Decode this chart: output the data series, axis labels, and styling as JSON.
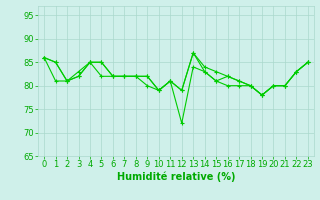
{
  "series": [
    [
      86,
      85,
      81,
      82,
      85,
      85,
      82,
      82,
      82,
      82,
      79,
      81,
      79,
      87,
      84,
      83,
      82,
      81,
      80,
      78,
      80,
      80,
      83,
      85
    ],
    [
      86,
      81,
      81,
      83,
      85,
      82,
      82,
      82,
      82,
      80,
      79,
      81,
      72,
      84,
      83,
      81,
      82,
      81,
      80,
      78,
      80,
      80,
      83,
      85
    ],
    [
      86,
      85,
      81,
      82,
      85,
      85,
      82,
      82,
      82,
      82,
      79,
      81,
      79,
      87,
      83,
      81,
      80,
      80,
      80,
      78,
      80,
      80,
      83,
      85
    ]
  ],
  "x": [
    0,
    1,
    2,
    3,
    4,
    5,
    6,
    7,
    8,
    9,
    10,
    11,
    12,
    13,
    14,
    15,
    16,
    17,
    18,
    19,
    20,
    21,
    22,
    23
  ],
  "line_color": "#00cc00",
  "marker": "+",
  "markersize": 3,
  "linewidth": 0.8,
  "xlabel": "Humidité relative (%)",
  "ylim": [
    65,
    97
  ],
  "xlim": [
    -0.5,
    23.5
  ],
  "yticks": [
    65,
    70,
    75,
    80,
    85,
    90,
    95
  ],
  "xticks": [
    0,
    1,
    2,
    3,
    4,
    5,
    6,
    7,
    8,
    9,
    10,
    11,
    12,
    13,
    14,
    15,
    16,
    17,
    18,
    19,
    20,
    21,
    22,
    23
  ],
  "background_color": "#cff0ea",
  "grid_color": "#aad8cc",
  "tick_color": "#00aa00",
  "label_color": "#00aa00",
  "xlabel_fontsize": 7,
  "tick_fontsize": 6
}
